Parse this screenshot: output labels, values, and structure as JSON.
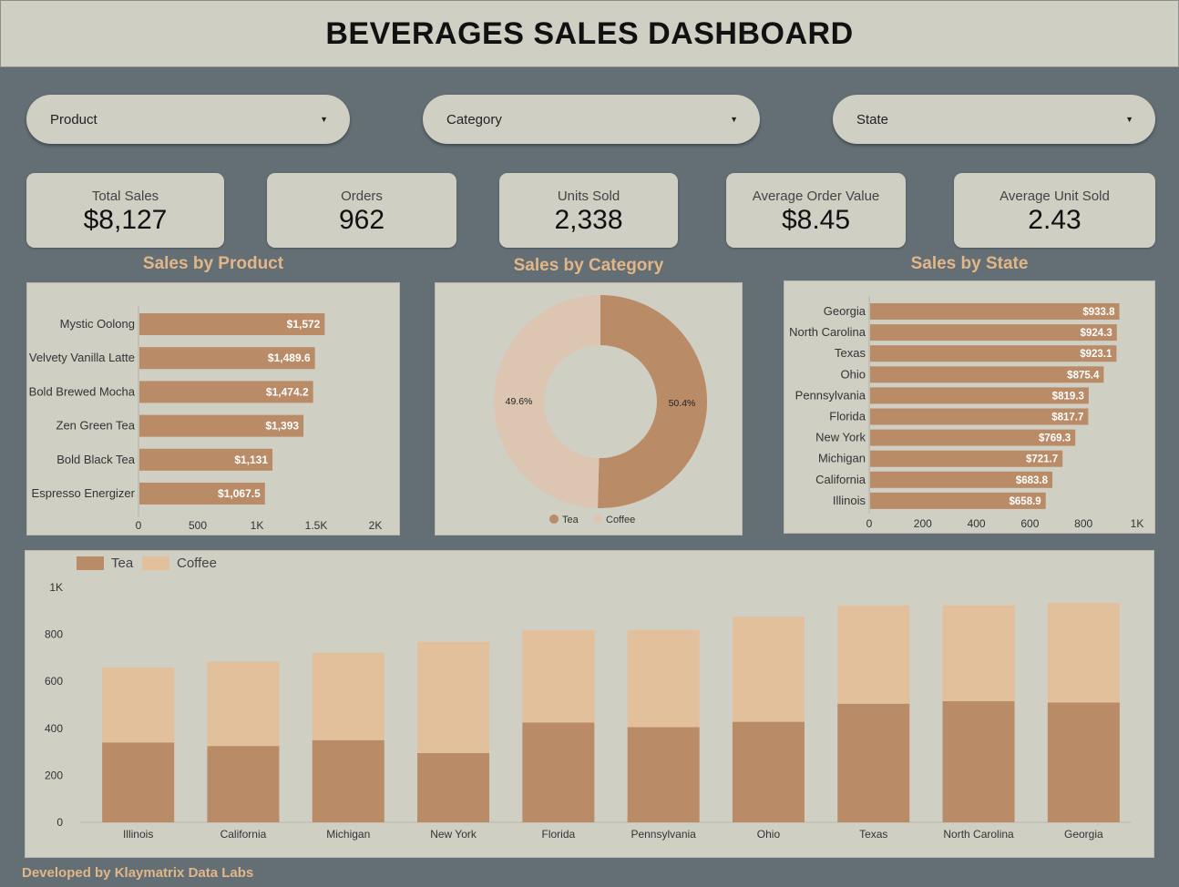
{
  "header": {
    "title": "BEVERAGES SALES DASHBOARD"
  },
  "filters": [
    {
      "label": "Product"
    },
    {
      "label": "Category"
    },
    {
      "label": "State"
    }
  ],
  "kpis": [
    {
      "label": "Total Sales",
      "value": "$8,127"
    },
    {
      "label": "Orders",
      "value": "962"
    },
    {
      "label": "Units Sold",
      "value": "2,338"
    },
    {
      "label": "Average Order Value",
      "value": "$8.45"
    },
    {
      "label": "Average Unit Sold",
      "value": "2.43"
    }
  ],
  "sections": {
    "product": "Sales by Product",
    "category": "Sales by Category",
    "state": "Sales by State"
  },
  "colors": {
    "tea": "#b98b67",
    "coffee": "#e3c09c",
    "donut_coffee": "#dcc6b2",
    "accent": "#e2b687"
  },
  "chart_data": [
    {
      "id": "product",
      "type": "bar",
      "orientation": "horizontal",
      "title": "Sales by Product",
      "categories": [
        "Mystic Oolong",
        "Velvety Vanilla Latte",
        "Bold Brewed Mocha",
        "Zen Green Tea",
        "Bold Black Tea",
        "Espresso Energizer"
      ],
      "values": [
        1572,
        1489.6,
        1474.2,
        1393,
        1131,
        1067.5
      ],
      "value_labels": [
        "$1,572",
        "$1,489.6",
        "$1,474.2",
        "$1,393",
        "$1,131",
        "$1,067.5"
      ],
      "xlim": [
        0,
        2000
      ],
      "x_ticks": [
        0,
        500,
        1000,
        1500,
        2000
      ],
      "x_tick_labels": [
        "0",
        "500",
        "1K",
        "1.5K",
        "2K"
      ]
    },
    {
      "id": "category",
      "type": "pie",
      "donut": true,
      "title": "Sales by Category",
      "labels": [
        "Tea",
        "Coffee"
      ],
      "values": [
        50.4,
        49.6
      ],
      "value_labels": [
        "50.4%",
        "49.6%"
      ],
      "legend": "bottom"
    },
    {
      "id": "state",
      "type": "bar",
      "orientation": "horizontal",
      "title": "Sales by State",
      "categories": [
        "Georgia",
        "North Carolina",
        "Texas",
        "Ohio",
        "Pennsylvania",
        "Florida",
        "New York",
        "Michigan",
        "California",
        "Illinois"
      ],
      "values": [
        933.8,
        924.3,
        923.1,
        875.4,
        819.3,
        817.7,
        769.3,
        721.7,
        683.8,
        658.9
      ],
      "value_labels": [
        "$933.8",
        "$924.3",
        "$923.1",
        "$875.4",
        "$819.3",
        "$817.7",
        "$769.3",
        "$721.7",
        "$683.8",
        "$658.9"
      ],
      "xlim": [
        0,
        1000
      ],
      "x_ticks": [
        0,
        200,
        400,
        600,
        800,
        1000
      ],
      "x_tick_labels": [
        "0",
        "200",
        "400",
        "600",
        "800",
        "1K"
      ]
    },
    {
      "id": "stacked",
      "type": "bar",
      "stacked": true,
      "categories": [
        "Illinois",
        "California",
        "Michigan",
        "New York",
        "Florida",
        "Pennsylvania",
        "Ohio",
        "Texas",
        "North Carolina",
        "Georgia"
      ],
      "series": [
        {
          "name": "Tea",
          "values": [
            340,
            325,
            350,
            295,
            425,
            405,
            428,
            505,
            516,
            510
          ]
        },
        {
          "name": "Coffee",
          "values": [
            319,
            359,
            372,
            474,
            393,
            414,
            447,
            418,
            408,
            424
          ]
        }
      ],
      "ylim": [
        0,
        1000
      ],
      "y_ticks": [
        0,
        200,
        400,
        600,
        800,
        1000
      ],
      "y_tick_labels": [
        "0",
        "200",
        "400",
        "600",
        "800",
        "1K"
      ],
      "legend": "top-left"
    }
  ],
  "footer": {
    "text": "Developed by Klaymatrix Data Labs"
  }
}
